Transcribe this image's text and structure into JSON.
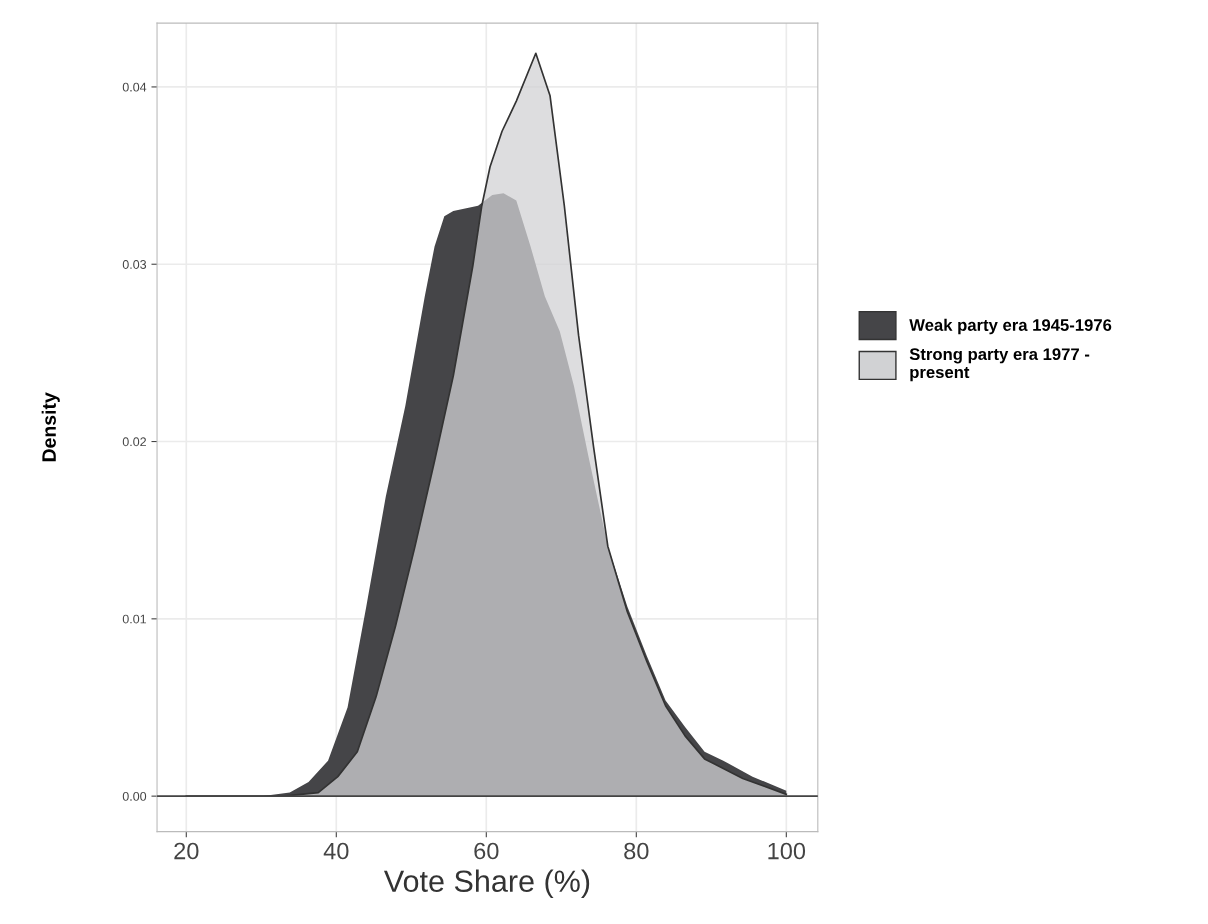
{
  "chart_data": {
    "type": "area",
    "xlabel": "Vote Share (%)",
    "ylabel": "Density",
    "series": [
      {
        "name": "Weak party era 1945-1976",
        "color": "#454548",
        "x": [
          20,
          30,
          33.8,
          36.3,
          38.9,
          41.5,
          44,
          46.6,
          49.2,
          51.8,
          53.1,
          54.4,
          55.6,
          58.9,
          60.8,
          62.3,
          64,
          65.9,
          67.8,
          69.8,
          71.7,
          73.6,
          76.2,
          78.8,
          81.4,
          83.9,
          86.5,
          89.1,
          91.6,
          95.5,
          100
        ],
        "values": [
          0,
          0,
          0.0002,
          0.0008,
          0.002,
          0.005,
          0.0107,
          0.0169,
          0.022,
          0.0282,
          0.031,
          0.0327,
          0.033,
          0.0333,
          0.0339,
          0.034,
          0.0336,
          0.031,
          0.0282,
          0.0262,
          0.0231,
          0.0192,
          0.0141,
          0.0107,
          0.0079,
          0.0054,
          0.0039,
          0.0025,
          0.002,
          0.0011,
          0.0003
        ]
      },
      {
        "name": "Strong party era 1977 -\npresent",
        "color": "#d1d2d4",
        "x": [
          20,
          33,
          37.6,
          40.2,
          42.8,
          45.3,
          47.9,
          50.5,
          53.1,
          55.6,
          58.2,
          59.4,
          60.5,
          62.1,
          64,
          66.6,
          68.5,
          70.4,
          72.3,
          74.3,
          76.2,
          78.8,
          81.4,
          83.9,
          86.5,
          89.1,
          94.2,
          100
        ],
        "values": [
          0,
          0,
          0.0002,
          0.0011,
          0.0025,
          0.0056,
          0.0096,
          0.0141,
          0.0189,
          0.0237,
          0.0299,
          0.0333,
          0.0355,
          0.0375,
          0.0392,
          0.0419,
          0.0395,
          0.0333,
          0.026,
          0.0197,
          0.0141,
          0.0104,
          0.0076,
          0.0051,
          0.0034,
          0.0021,
          0.001,
          0.0001
        ]
      }
    ],
    "xlim": [
      16.1,
      104.2
    ],
    "xticks": [
      20,
      40,
      60,
      80,
      100
    ],
    "ylim": [
      -0.002,
      0.0436
    ],
    "yticks": [
      {
        "value": 0,
        "label": "0.00"
      },
      0.01,
      0.02,
      0.03,
      0.04
    ],
    "grid": true,
    "legend": "right"
  }
}
